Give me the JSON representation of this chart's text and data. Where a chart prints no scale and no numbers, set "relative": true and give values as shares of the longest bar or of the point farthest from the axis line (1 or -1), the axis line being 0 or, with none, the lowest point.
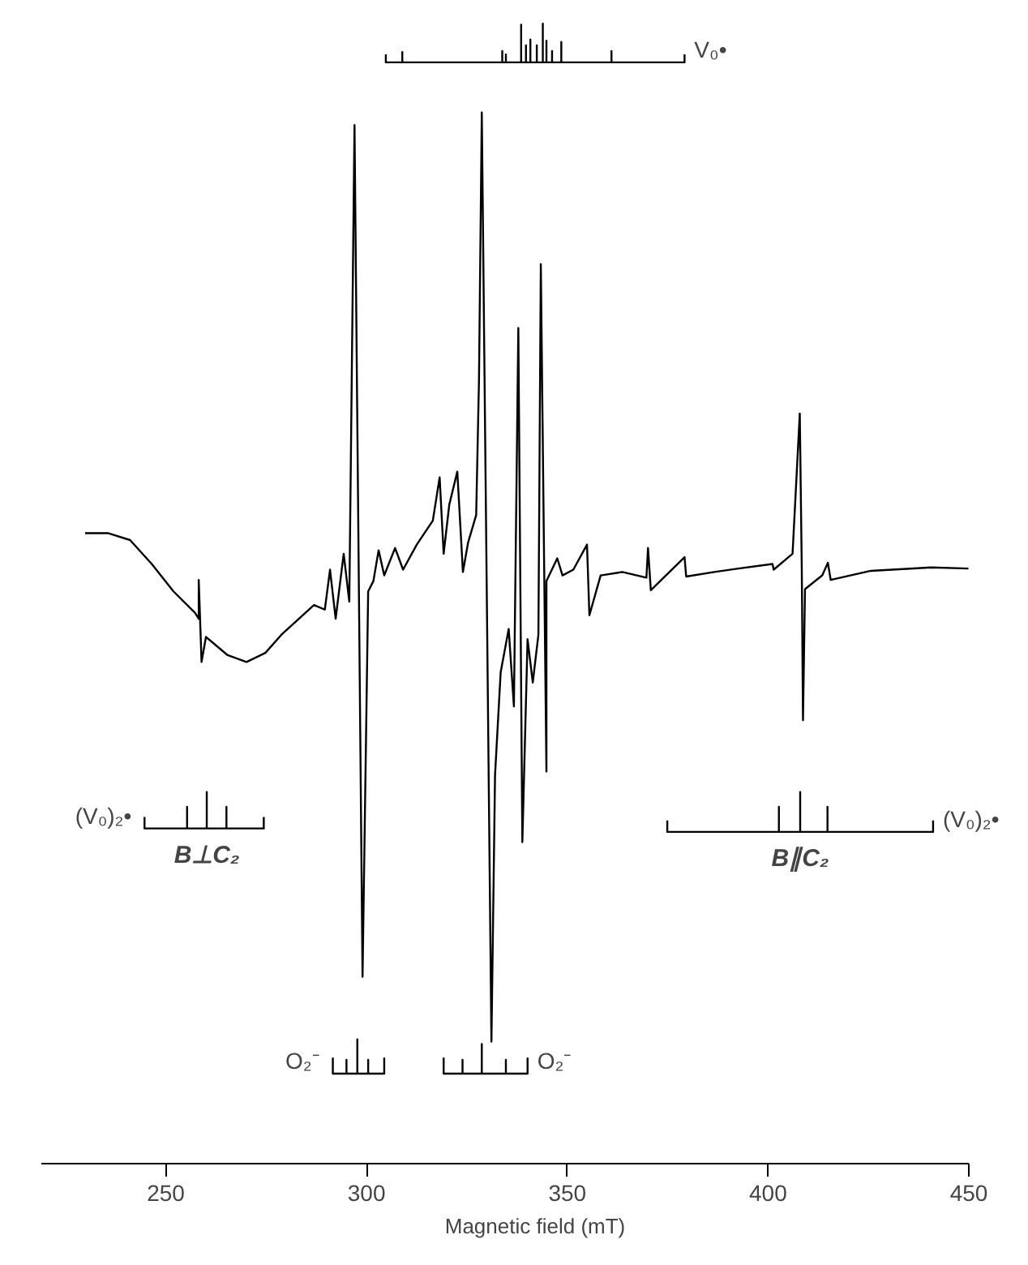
{
  "chart_data": {
    "type": "line",
    "relative": true,
    "xlabel": "Magnetic field (mT)",
    "xlim": [
      219,
      450
    ],
    "xticks": [
      250,
      300,
      350,
      400,
      450
    ],
    "marker": "none",
    "line_style": "solid",
    "series": [
      {
        "color": "#000000",
        "x": [
          229.9,
          235.7,
          241.1,
          246.5,
          251.9,
          257.3,
          258.2,
          258.2,
          258.9,
          260.0,
          265.4,
          270.1,
          274.8,
          278.8,
          286.9,
          289.6,
          290.9,
          292.3,
          294.3,
          295.7,
          297.0,
          299.0,
          300.4,
          301.7,
          303.0,
          304.4,
          307.1,
          309.1,
          312.5,
          316.5,
          318.2,
          319.2,
          320.6,
          322.6,
          324.0,
          325.3,
          327.3,
          328.0,
          328.7,
          331.1,
          332.0,
          333.4,
          335.4,
          336.7,
          337.8,
          338.8,
          340.1,
          341.4,
          342.8,
          343.4,
          344.8,
          344.8,
          347.5,
          348.8,
          351.5,
          354.9,
          355.5,
          358.3,
          363.7,
          369.7,
          370.1,
          370.8,
          379.2,
          379.6,
          386.6,
          392.6,
          401.1,
          401.4,
          406.1,
          407.9,
          408.4,
          408.7,
          409.2,
          413.5,
          414.9,
          415.6,
          425.6,
          440.7,
          449.9
        ],
        "values": [
          0.553,
          0.553,
          0.547,
          0.526,
          0.502,
          0.483,
          0.478,
          0.512,
          0.44,
          0.462,
          0.446,
          0.44,
          0.448,
          0.464,
          0.49,
          0.486,
          0.521,
          0.478,
          0.535,
          0.493,
          0.911,
          0.164,
          0.502,
          0.511,
          0.538,
          0.516,
          0.54,
          0.521,
          0.543,
          0.564,
          0.602,
          0.535,
          0.578,
          0.607,
          0.519,
          0.545,
          0.569,
          0.687,
          0.922,
          0.107,
          0.341,
          0.431,
          0.469,
          0.401,
          0.733,
          0.282,
          0.46,
          0.422,
          0.464,
          0.789,
          0.344,
          0.511,
          0.531,
          0.516,
          0.521,
          0.543,
          0.481,
          0.516,
          0.519,
          0.514,
          0.54,
          0.503,
          0.532,
          0.515,
          0.519,
          0.522,
          0.526,
          0.521,
          0.535,
          0.658,
          0.521,
          0.389,
          0.504,
          0.516,
          0.527,
          0.512,
          0.52,
          0.523,
          0.522
        ]
      },
      {
        "name": "V₀•",
        "color": "#000000",
        "x": [
          304.8,
          304.8,
          308.9,
          308.9,
          308.9,
          333.8,
          333.8,
          333.8,
          334.7,
          334.7,
          334.7,
          338.5,
          338.5,
          338.5,
          339.7,
          339.7,
          339.7,
          340.8,
          340.8,
          340.8,
          342.4,
          342.4,
          342.4,
          343.9,
          343.9,
          343.9,
          344.8,
          344.8,
          344.8,
          346.2,
          346.2,
          346.2,
          348.5,
          348.5,
          348.5,
          361.0,
          361.0,
          361.0,
          379.2,
          379.2
        ],
        "values": [
          0.973,
          0.966,
          0.966,
          0.975,
          0.966,
          0.966,
          0.976,
          0.966,
          0.966,
          0.973,
          0.966,
          0.966,
          0.999,
          0.966,
          0.966,
          0.981,
          0.966,
          0.966,
          0.986,
          0.966,
          0.966,
          0.981,
          0.966,
          0.966,
          1.0,
          0.966,
          0.966,
          0.985,
          0.966,
          0.966,
          0.976,
          0.966,
          0.966,
          0.984,
          0.966,
          0.966,
          0.976,
          0.966,
          0.966,
          0.973
        ]
      },
      {
        "name": "(V₀)₂•",
        "color": "#000000",
        "x": [
          244.7,
          244.7,
          255.3,
          255.3,
          255.3,
          260.2,
          260.2,
          260.2,
          265.1,
          265.1,
          265.1,
          274.4,
          274.4
        ],
        "values": [
          0.304,
          0.294,
          0.294,
          0.313,
          0.294,
          0.294,
          0.326,
          0.294,
          0.294,
          0.313,
          0.294,
          0.294,
          0.304
        ]
      },
      {
        "name": "(V₀)₂•",
        "color": "#000000",
        "x": [
          374.9,
          374.9,
          402.7,
          402.7,
          402.7,
          408.0,
          408.0,
          408.0,
          414.8,
          414.8,
          414.8,
          441.1,
          441.1
        ],
        "values": [
          0.301,
          0.291,
          0.291,
          0.313,
          0.291,
          0.291,
          0.326,
          0.291,
          0.291,
          0.313,
          0.291,
          0.291,
          0.301
        ]
      },
      {
        "name": "O₂⁻",
        "color": "#000000",
        "x": [
          291.6,
          291.6,
          295.0,
          295.0,
          295.0,
          297.7,
          297.7,
          297.7,
          300.4,
          300.4,
          300.4,
          304.4,
          304.4
        ],
        "values": [
          0.093,
          0.079,
          0.079,
          0.091,
          0.079,
          0.079,
          0.109,
          0.079,
          0.079,
          0.091,
          0.079,
          0.079,
          0.093
        ]
      },
      {
        "name": "O₂⁻",
        "color": "#000000",
        "x": [
          319.2,
          319.2,
          323.9,
          323.9,
          323.9,
          328.7,
          328.7,
          328.7,
          334.7,
          334.7,
          334.7,
          340.1,
          340.1
        ],
        "values": [
          0.093,
          0.079,
          0.079,
          0.091,
          0.079,
          0.079,
          0.105,
          0.079,
          0.079,
          0.091,
          0.079,
          0.079,
          0.093
        ]
      }
    ],
    "annotations": [
      {
        "text": "B⊥C₂",
        "x": 260.2,
        "y": 0.294
      },
      {
        "text": "B∥C₂",
        "x": 408.0,
        "y": 0.291
      }
    ]
  }
}
